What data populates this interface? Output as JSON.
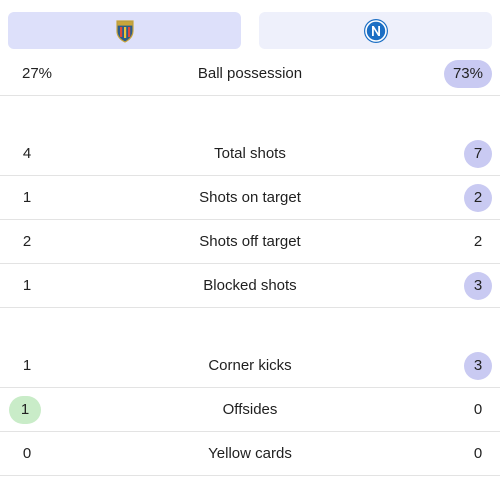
{
  "teams": {
    "home": {
      "crest_icon": "lecce-crest-icon",
      "color": "#dde0fa"
    },
    "away": {
      "crest_icon": "napoli-crest-icon",
      "color": "#eef0fb"
    }
  },
  "colors": {
    "home_highlight": "#c9ecc8",
    "away_highlight": "#c9caf2",
    "divider": "#e3e3e3"
  },
  "stats": [
    {
      "label": "Ball possession",
      "home": "27%",
      "away": "73%",
      "leader": "away"
    },
    {
      "label": "Total shots",
      "home": "4",
      "away": "7",
      "leader": "away"
    },
    {
      "label": "Shots on target",
      "home": "1",
      "away": "2",
      "leader": "away"
    },
    {
      "label": "Shots off target",
      "home": "2",
      "away": "2",
      "leader": "none"
    },
    {
      "label": "Blocked shots",
      "home": "1",
      "away": "3",
      "leader": "away"
    },
    {
      "label": "Corner kicks",
      "home": "1",
      "away": "3",
      "leader": "away"
    },
    {
      "label": "Offsides",
      "home": "1",
      "away": "0",
      "leader": "home"
    },
    {
      "label": "Yellow cards",
      "home": "0",
      "away": "0",
      "leader": "none"
    }
  ]
}
